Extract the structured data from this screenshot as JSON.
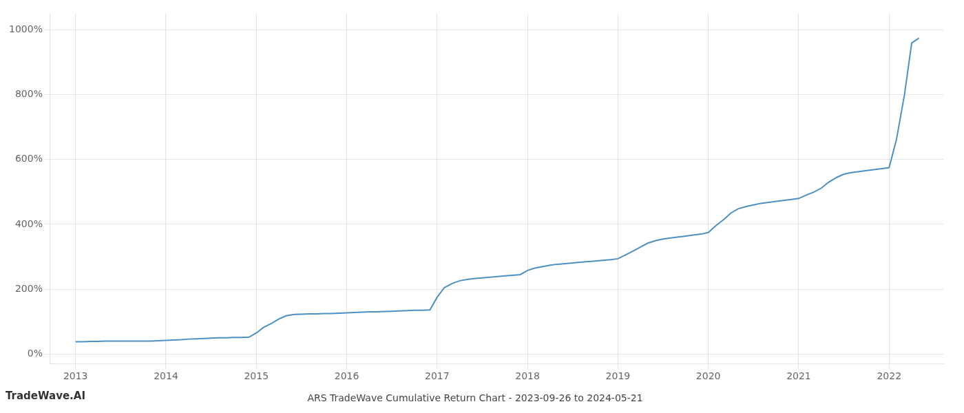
{
  "chart_data": {
    "type": "line",
    "title": "ARS TradeWave Cumulative Return Chart - 2023-09-26 to 2024-05-21",
    "annotations": [
      "TradeWave.AI"
    ],
    "color": "#4a90c4",
    "grid": true,
    "x": [
      2013.0,
      2013.08,
      2013.17,
      2013.25,
      2013.33,
      2013.42,
      2013.5,
      2013.58,
      2013.67,
      2013.75,
      2013.83,
      2013.92,
      2014.0,
      2014.08,
      2014.17,
      2014.25,
      2014.33,
      2014.42,
      2014.5,
      2014.58,
      2014.67,
      2014.75,
      2014.83,
      2014.92,
      2015.0,
      2015.08,
      2015.17,
      2015.25,
      2015.33,
      2015.42,
      2015.5,
      2015.58,
      2015.67,
      2015.75,
      2015.83,
      2015.92,
      2016.0,
      2016.08,
      2016.17,
      2016.25,
      2016.33,
      2016.42,
      2016.5,
      2016.58,
      2016.67,
      2016.75,
      2016.83,
      2016.92,
      2017.0,
      2017.08,
      2017.17,
      2017.25,
      2017.33,
      2017.42,
      2017.5,
      2017.58,
      2017.67,
      2017.75,
      2017.83,
      2017.92,
      2018.0,
      2018.08,
      2018.17,
      2018.25,
      2018.33,
      2018.42,
      2018.5,
      2018.58,
      2018.67,
      2018.75,
      2018.83,
      2018.92,
      2019.0,
      2019.08,
      2019.17,
      2019.25,
      2019.33,
      2019.42,
      2019.5,
      2019.58,
      2019.67,
      2019.75,
      2019.83,
      2019.92,
      2020.0,
      2020.08,
      2020.17,
      2020.25,
      2020.33,
      2020.42,
      2020.5,
      2020.58,
      2020.67,
      2020.75,
      2020.83,
      2020.92,
      2021.0,
      2021.08,
      2021.17,
      2021.25,
      2021.33,
      2021.42,
      2021.5,
      2021.58,
      2021.67,
      2021.75,
      2021.83,
      2021.92,
      2022.0,
      2022.08,
      2022.17,
      2022.25,
      2022.33
    ],
    "values": [
      38,
      38,
      39,
      39,
      40,
      40,
      40,
      40,
      40,
      40,
      40,
      41,
      42,
      43,
      44,
      46,
      47,
      48,
      49,
      50,
      50,
      51,
      51,
      52,
      65,
      82,
      95,
      108,
      118,
      122,
      123,
      124,
      124,
      125,
      125,
      126,
      127,
      128,
      129,
      130,
      130,
      131,
      132,
      133,
      134,
      135,
      135,
      136,
      175,
      205,
      218,
      226,
      230,
      233,
      235,
      237,
      239,
      241,
      243,
      245,
      258,
      265,
      270,
      274,
      277,
      279,
      281,
      283,
      285,
      287,
      289,
      291,
      294,
      305,
      318,
      330,
      342,
      350,
      355,
      358,
      361,
      364,
      367,
      370,
      375,
      395,
      415,
      435,
      448,
      455,
      460,
      465,
      468,
      471,
      474,
      477,
      480,
      490,
      500,
      512,
      530,
      545,
      555,
      560,
      563,
      566,
      569,
      572,
      575,
      660,
      800,
      960,
      975
    ],
    "xlim": [
      2012.72,
      2022.6
    ],
    "xticks": [
      2013,
      2014,
      2015,
      2016,
      2017,
      2018,
      2019,
      2020,
      2021,
      2022
    ],
    "ylim": [
      -30,
      1050
    ],
    "yticks": [
      {
        "value": 0,
        "label": "0%"
      },
      {
        "value": 200,
        "label": "200%"
      },
      {
        "value": 400,
        "label": "400%"
      },
      {
        "value": 600,
        "label": "600%"
      },
      {
        "value": 800,
        "label": "800%"
      },
      {
        "value": 1000,
        "label": "1000%"
      }
    ]
  }
}
